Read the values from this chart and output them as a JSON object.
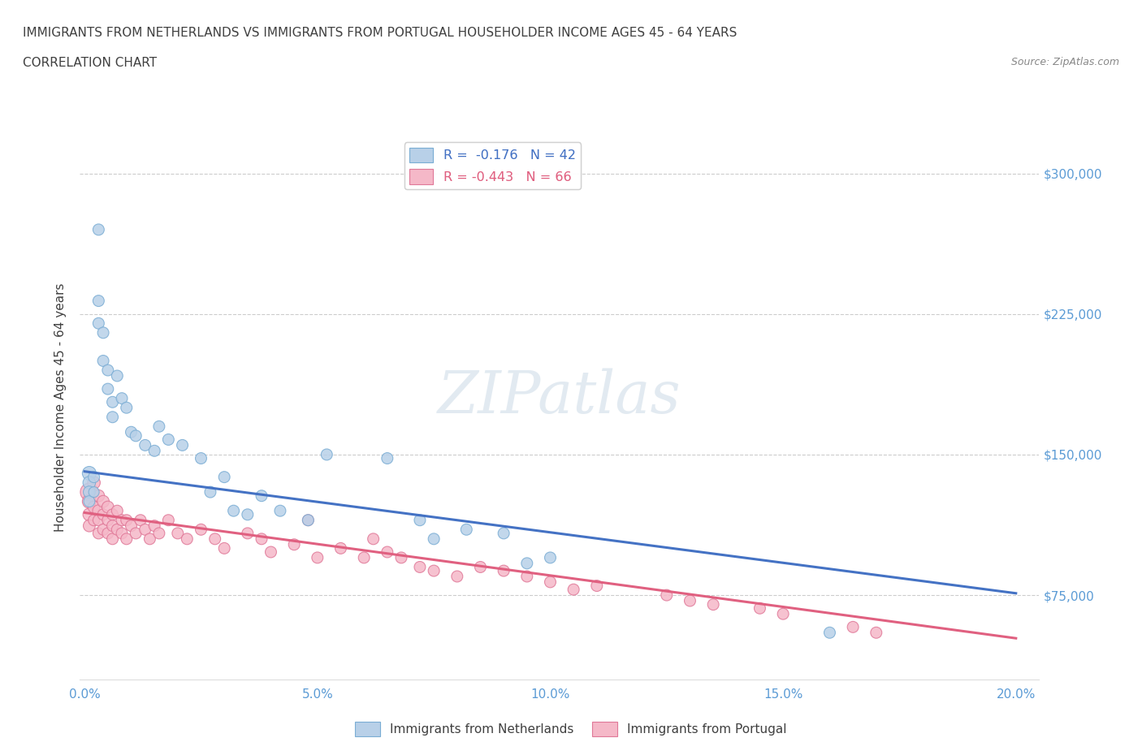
{
  "title_line1": "IMMIGRANTS FROM NETHERLANDS VS IMMIGRANTS FROM PORTUGAL HOUSEHOLDER INCOME AGES 45 - 64 YEARS",
  "title_line2": "CORRELATION CHART",
  "source_text": "Source: ZipAtlas.com",
  "ylabel": "Householder Income Ages 45 - 64 years",
  "xlim": [
    -0.001,
    0.205
  ],
  "ylim": [
    30000,
    320000
  ],
  "yticks": [
    75000,
    150000,
    225000,
    300000
  ],
  "ytick_labels": [
    "$75,000",
    "$150,000",
    "$225,000",
    "$300,000"
  ],
  "xtick_labels": [
    "0.0%",
    "5.0%",
    "10.0%",
    "15.0%",
    "20.0%"
  ],
  "xticks": [
    0.0,
    0.05,
    0.1,
    0.15,
    0.2
  ],
  "netherlands_color": "#b8d0e8",
  "netherlands_edge_color": "#7aadd4",
  "portugal_color": "#f5b8c8",
  "portugal_edge_color": "#e07898",
  "netherlands_line_color": "#4472c4",
  "portugal_line_color": "#e06080",
  "legend_R_netherlands": "R =  -0.176   N = 42",
  "legend_R_portugal": "R = -0.443   N = 66",
  "watermark": "ZIPatlas",
  "background_color": "#ffffff",
  "grid_color": "#cccccc",
  "title_color": "#404040",
  "ytick_color": "#5b9bd5",
  "xtick_color": "#5b9bd5",
  "nl_trend_x0": 0.0,
  "nl_trend_y0": 141000,
  "nl_trend_x1": 0.2,
  "nl_trend_y1": 76000,
  "pt_trend_x0": 0.0,
  "pt_trend_y0": 119000,
  "pt_trend_x1": 0.2,
  "pt_trend_y1": 52000,
  "netherlands_x": [
    0.001,
    0.001,
    0.001,
    0.001,
    0.002,
    0.002,
    0.003,
    0.003,
    0.003,
    0.004,
    0.004,
    0.005,
    0.005,
    0.006,
    0.006,
    0.007,
    0.008,
    0.009,
    0.01,
    0.011,
    0.013,
    0.015,
    0.016,
    0.018,
    0.021,
    0.025,
    0.027,
    0.03,
    0.032,
    0.035,
    0.038,
    0.042,
    0.048,
    0.052,
    0.065,
    0.072,
    0.075,
    0.082,
    0.09,
    0.095,
    0.1,
    0.16
  ],
  "netherlands_y": [
    140000,
    135000,
    130000,
    125000,
    138000,
    130000,
    270000,
    232000,
    220000,
    215000,
    200000,
    195000,
    185000,
    178000,
    170000,
    192000,
    180000,
    175000,
    162000,
    160000,
    155000,
    152000,
    165000,
    158000,
    155000,
    148000,
    130000,
    138000,
    120000,
    118000,
    128000,
    120000,
    115000,
    150000,
    148000,
    115000,
    105000,
    110000,
    108000,
    92000,
    95000,
    55000
  ],
  "netherlands_sizes": [
    60,
    50,
    45,
    40,
    40,
    35,
    40,
    40,
    40,
    40,
    40,
    40,
    40,
    40,
    40,
    40,
    40,
    40,
    40,
    40,
    40,
    40,
    40,
    40,
    40,
    40,
    40,
    40,
    40,
    40,
    40,
    40,
    40,
    40,
    40,
    40,
    40,
    40,
    40,
    40,
    40,
    40
  ],
  "portugal_x": [
    0.001,
    0.001,
    0.001,
    0.001,
    0.002,
    0.002,
    0.002,
    0.003,
    0.003,
    0.003,
    0.003,
    0.004,
    0.004,
    0.004,
    0.005,
    0.005,
    0.005,
    0.006,
    0.006,
    0.006,
    0.007,
    0.007,
    0.008,
    0.008,
    0.009,
    0.009,
    0.01,
    0.011,
    0.012,
    0.013,
    0.014,
    0.015,
    0.016,
    0.018,
    0.02,
    0.022,
    0.025,
    0.028,
    0.03,
    0.035,
    0.038,
    0.04,
    0.045,
    0.048,
    0.05,
    0.055,
    0.06,
    0.062,
    0.065,
    0.068,
    0.072,
    0.075,
    0.08,
    0.085,
    0.09,
    0.095,
    0.1,
    0.105,
    0.11,
    0.125,
    0.13,
    0.135,
    0.145,
    0.15,
    0.165,
    0.17
  ],
  "portugal_y": [
    130000,
    125000,
    118000,
    112000,
    135000,
    122000,
    115000,
    128000,
    120000,
    115000,
    108000,
    125000,
    118000,
    110000,
    122000,
    115000,
    108000,
    118000,
    112000,
    105000,
    120000,
    110000,
    115000,
    108000,
    115000,
    105000,
    112000,
    108000,
    115000,
    110000,
    105000,
    112000,
    108000,
    115000,
    108000,
    105000,
    110000,
    105000,
    100000,
    108000,
    105000,
    98000,
    102000,
    115000,
    95000,
    100000,
    95000,
    105000,
    98000,
    95000,
    90000,
    88000,
    85000,
    90000,
    88000,
    85000,
    82000,
    78000,
    80000,
    75000,
    72000,
    70000,
    68000,
    65000,
    58000,
    55000
  ],
  "portugal_sizes": [
    100,
    60,
    50,
    45,
    50,
    45,
    40,
    45,
    45,
    40,
    40,
    45,
    40,
    40,
    45,
    40,
    40,
    40,
    40,
    40,
    40,
    40,
    40,
    40,
    40,
    40,
    40,
    40,
    40,
    40,
    40,
    40,
    40,
    40,
    40,
    40,
    40,
    40,
    40,
    40,
    40,
    40,
    40,
    40,
    40,
    40,
    40,
    40,
    40,
    40,
    40,
    40,
    40,
    40,
    40,
    40,
    40,
    40,
    40,
    40,
    40,
    40,
    40,
    40,
    40,
    40
  ]
}
